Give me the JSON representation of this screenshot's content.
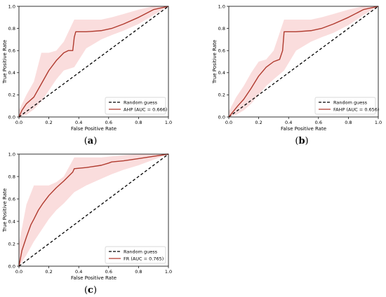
{
  "chart_data": [
    {
      "type": "line",
      "caption": "a",
      "xlabel": "False Positive Rate",
      "ylabel": "True Positive Rate",
      "xlim": [
        0,
        1
      ],
      "ylim": [
        0,
        1
      ],
      "xticks": [
        "0.0",
        "0.2",
        "0.4",
        "0.6",
        "0.8",
        "1.0"
      ],
      "yticks": [
        "0.0",
        "0.2",
        "0.4",
        "0.6",
        "0.8",
        "1.0"
      ],
      "grid": false,
      "legend_position": "bottom-right",
      "colors": {
        "roc": "#b03a2e",
        "band": "#f7c6c6",
        "reference": "#000000"
      },
      "series": [
        {
          "name": "Random guess",
          "style": "dashed",
          "x": [
            0,
            1
          ],
          "y": [
            0,
            1
          ]
        },
        {
          "name": "AHP (AUC = 0.666)",
          "style": "solid",
          "x": [
            0.0,
            0.02,
            0.05,
            0.1,
            0.15,
            0.2,
            0.25,
            0.3,
            0.33,
            0.36,
            0.37,
            0.38,
            0.45,
            0.55,
            0.62,
            0.7,
            0.8,
            0.9,
            1.0
          ],
          "y": [
            0.0,
            0.06,
            0.12,
            0.18,
            0.3,
            0.42,
            0.51,
            0.58,
            0.6,
            0.6,
            0.72,
            0.77,
            0.77,
            0.78,
            0.8,
            0.84,
            0.9,
            0.97,
            1.0
          ]
        }
      ],
      "band": {
        "x": [
          0.0,
          0.05,
          0.1,
          0.15,
          0.2,
          0.25,
          0.3,
          0.37,
          0.45,
          0.55,
          0.62,
          0.7,
          0.8,
          0.9,
          1.0
        ],
        "lower": [
          0.0,
          0.02,
          0.07,
          0.14,
          0.24,
          0.34,
          0.42,
          0.45,
          0.62,
          0.7,
          0.74,
          0.78,
          0.84,
          0.92,
          1.0
        ],
        "upper": [
          0.06,
          0.2,
          0.32,
          0.58,
          0.58,
          0.6,
          0.68,
          0.88,
          0.88,
          0.88,
          0.9,
          0.93,
          0.97,
          1.0,
          1.0
        ]
      }
    },
    {
      "type": "line",
      "caption": "b",
      "xlabel": "False Positive Rate",
      "ylabel": "True Positive Rate",
      "xlim": [
        0,
        1
      ],
      "ylim": [
        0,
        1
      ],
      "xticks": [
        "0.0",
        "0.2",
        "0.4",
        "0.6",
        "0.8",
        "1.0"
      ],
      "yticks": [
        "0.0",
        "0.2",
        "0.4",
        "0.6",
        "0.8",
        "1.0"
      ],
      "grid": false,
      "legend_position": "bottom-right",
      "colors": {
        "roc": "#b03a2e",
        "band": "#f7c6c6",
        "reference": "#000000"
      },
      "series": [
        {
          "name": "Random guess",
          "style": "dashed",
          "x": [
            0,
            1
          ],
          "y": [
            0,
            1
          ]
        },
        {
          "name": "FAHP (AUC = 0.656)",
          "style": "solid",
          "x": [
            0.0,
            0.03,
            0.06,
            0.1,
            0.15,
            0.2,
            0.25,
            0.3,
            0.34,
            0.36,
            0.37,
            0.45,
            0.55,
            0.62,
            0.7,
            0.8,
            0.9,
            1.0
          ],
          "y": [
            0.0,
            0.05,
            0.1,
            0.16,
            0.26,
            0.37,
            0.45,
            0.5,
            0.52,
            0.6,
            0.77,
            0.77,
            0.78,
            0.8,
            0.84,
            0.9,
            0.97,
            1.0
          ]
        }
      ],
      "band": {
        "x": [
          0.0,
          0.05,
          0.1,
          0.15,
          0.2,
          0.25,
          0.3,
          0.37,
          0.45,
          0.55,
          0.62,
          0.7,
          0.8,
          0.9,
          1.0
        ],
        "lower": [
          0.0,
          0.02,
          0.06,
          0.12,
          0.2,
          0.28,
          0.34,
          0.42,
          0.6,
          0.68,
          0.72,
          0.76,
          0.83,
          0.92,
          1.0
        ],
        "upper": [
          0.05,
          0.18,
          0.28,
          0.4,
          0.5,
          0.52,
          0.6,
          0.88,
          0.88,
          0.88,
          0.9,
          0.93,
          0.97,
          1.0,
          1.0
        ]
      }
    },
    {
      "type": "line",
      "caption": "c",
      "xlabel": "False Positive Rate",
      "ylabel": "True Positive Rate",
      "xlim": [
        0,
        1
      ],
      "ylim": [
        0,
        1
      ],
      "xticks": [
        "0.0",
        "0.2",
        "0.4",
        "0.6",
        "0.8",
        "1.0"
      ],
      "yticks": [
        "0.0",
        "0.2",
        "0.4",
        "0.6",
        "0.8",
        "1.0"
      ],
      "grid": false,
      "legend_position": "bottom-right",
      "colors": {
        "roc": "#b03a2e",
        "band": "#f7c6c6",
        "reference": "#000000"
      },
      "series": [
        {
          "name": "Random guess",
          "style": "dashed",
          "x": [
            0,
            1
          ],
          "y": [
            0,
            1
          ]
        },
        {
          "name": "FR (AUC = 0.765)",
          "style": "solid",
          "x": [
            0.0,
            0.02,
            0.05,
            0.08,
            0.1,
            0.13,
            0.16,
            0.2,
            0.25,
            0.3,
            0.33,
            0.36,
            0.37,
            0.45,
            0.55,
            0.6,
            0.62,
            0.7,
            0.8,
            0.9,
            1.0
          ],
          "y": [
            0.0,
            0.14,
            0.26,
            0.37,
            0.42,
            0.5,
            0.56,
            0.63,
            0.7,
            0.76,
            0.8,
            0.84,
            0.87,
            0.88,
            0.9,
            0.92,
            0.93,
            0.94,
            0.96,
            0.98,
            1.0
          ]
        }
      ],
      "band": {
        "x": [
          0.0,
          0.05,
          0.1,
          0.15,
          0.2,
          0.25,
          0.3,
          0.37,
          0.45,
          0.55,
          0.62,
          0.7,
          0.8,
          0.9,
          1.0
        ],
        "lower": [
          0.0,
          0.1,
          0.22,
          0.32,
          0.42,
          0.5,
          0.56,
          0.66,
          0.72,
          0.78,
          0.82,
          0.86,
          0.9,
          0.95,
          1.0
        ],
        "upper": [
          0.2,
          0.55,
          0.72,
          0.72,
          0.72,
          0.75,
          0.8,
          0.97,
          0.97,
          0.97,
          0.98,
          0.99,
          1.0,
          1.0,
          1.0
        ]
      }
    }
  ]
}
